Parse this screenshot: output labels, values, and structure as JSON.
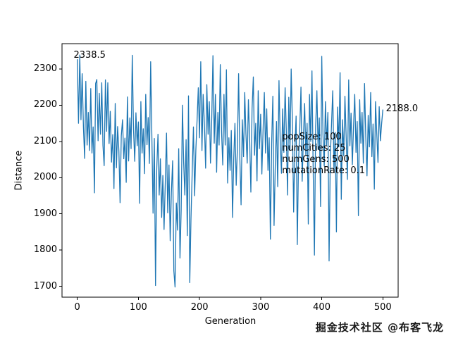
{
  "watermark": "掘金技术社区 @布客飞龙",
  "chart_data": {
    "type": "line",
    "title": "",
    "xlabel": "Generation",
    "ylabel": "Distance",
    "line_color": "#1f77b4",
    "x_start": 0,
    "x_step": 2,
    "xlim": [
      -25,
      525
    ],
    "ylim": [
      1670,
      2370
    ],
    "xticks": [
      0,
      100,
      200,
      300,
      400,
      500
    ],
    "yticks": [
      1700,
      1800,
      1900,
      2000,
      2100,
      2200,
      2300
    ],
    "grid": false,
    "legend": "none",
    "annotations": [
      {
        "text": "2338.5",
        "x": -6,
        "y": 2352
      },
      {
        "text": "2188.0",
        "x": 505,
        "y": 2205
      }
    ],
    "info_box": {
      "x": 335,
      "y": 2127,
      "lines": [
        "popSize: 100",
        "numCities: 25",
        "numGens: 500",
        "mutationRate: 0.1"
      ]
    },
    "values": [
      2327,
      2150,
      2338.5,
      2160,
      2287,
      2140,
      2053,
      2266,
      2090,
      2180,
      2075,
      2246,
      2068,
      2140,
      1958,
      2260,
      2271,
      2102,
      2233,
      2120,
      2262,
      2089,
      2033,
      2270,
      2128,
      2262,
      2094,
      2183,
      2043,
      2119,
      1970,
      2205,
      2027,
      2141,
      2073,
      1931,
      2115,
      2160,
      2052,
      2109,
      1987,
      2223,
      2046,
      2165,
      2080,
      2338,
      2132,
      2045,
      2179,
      2088,
      2154,
      1929,
      2210,
      2068,
      2135,
      2011,
      2230,
      2091,
      2166,
      2039,
      2320,
      2115,
      1902,
      2108,
      1702,
      2022,
      2120,
      1952,
      2052,
      1890,
      2006,
      1857,
      1989,
      2123,
      1903,
      2035,
      1826,
      1960,
      2047,
      1743,
      1698,
      1930,
      1855,
      2080,
      1778,
      1910,
      2200,
      2044,
      1952,
      2105,
      1840,
      2226,
      1710,
      1885,
      2012,
      2140,
      1950,
      2075,
      2160,
      2248,
      2110,
      2320,
      2075,
      2230,
      2145,
      2026,
      2257,
      2120,
      2210,
      2040,
      2165,
      2337,
      2095,
      2230,
      2015,
      2180,
      2090,
      2312,
      2128,
      2035,
      2230,
      2090,
      2298,
      1985,
      2110,
      2020,
      2130,
      1890,
      2055,
      2150,
      1979,
      2085,
      2287,
      2050,
      1925,
      2160,
      2058,
      2235,
      2120,
      2040,
      2215,
      2105,
      1960,
      2190,
      2278,
      2062,
      2150,
      1991,
      2240,
      2080,
      2175,
      2010,
      2130,
      2235,
      2068,
      2190,
      2020,
      2110,
      1830,
      2095,
      2225,
      1868,
      2040,
      2155,
      1975,
      2268,
      2105,
      2012,
      2190,
      2070,
      2248,
      2130,
      1952,
      2222,
      2075,
      2300,
      2145,
      1905,
      2080,
      2170,
      1815,
      2043,
      2135,
      2250,
      1990,
      2115,
      2205,
      2062,
      2150,
      1872,
      2230,
      2100,
      2295,
      2025,
      1786,
      2140,
      2240,
      2078,
      2165,
      1920,
      2335,
      2120,
      2032,
      2210,
      2090,
      2180,
      1770,
      2055,
      2150,
      2240,
      2017,
      2125,
      1850,
      2195,
      2085,
      2290,
      1940,
      2160,
      2060,
      2225,
      2108,
      1995,
      2270,
      2088,
      2178,
      2036,
      2142,
      2230,
      2070,
      2155,
      1895,
      2215,
      2095,
      2180,
      2040,
      2260,
      2115,
      2005,
      2172,
      2085,
      2235,
      2058,
      2148,
      1968,
      2210,
      2124,
      2042,
      2196,
      2102,
      2150,
      2188
    ]
  }
}
